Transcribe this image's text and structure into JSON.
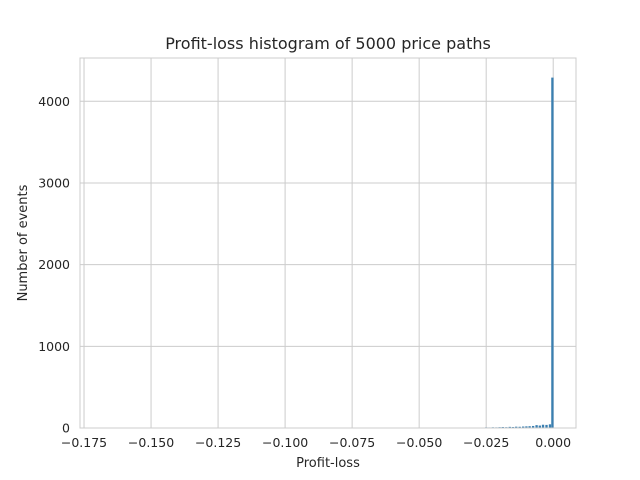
{
  "chart_data": {
    "type": "bar",
    "title": "Profit-loss histogram of 5000 price paths",
    "xlabel": "Profit-loss",
    "ylabel": "Number of events",
    "xlim": [
      -0.1765,
      0.0085
    ],
    "ylim": [
      0,
      4530
    ],
    "grid": true,
    "x_ticks": [
      -0.175,
      -0.15,
      -0.125,
      -0.1,
      -0.075,
      -0.05,
      -0.025,
      0.0
    ],
    "x_tick_labels": [
      "−0.175",
      "−0.150",
      "−0.125",
      "−0.100",
      "−0.075",
      "−0.050",
      "−0.025",
      "0.000"
    ],
    "y_ticks": [
      0,
      1000,
      2000,
      3000,
      4000
    ],
    "y_tick_labels": [
      "0",
      "1000",
      "2000",
      "3000",
      "4000"
    ],
    "bar_color": "#3a7fb0",
    "bin_width": 0.00087,
    "bins": [
      {
        "x": -0.03,
        "count": 5
      },
      {
        "x": -0.0287,
        "count": 4
      },
      {
        "x": -0.0275,
        "count": 6
      },
      {
        "x": -0.0262,
        "count": 5
      },
      {
        "x": -0.025,
        "count": 8
      },
      {
        "x": -0.0238,
        "count": 7
      },
      {
        "x": -0.0225,
        "count": 9
      },
      {
        "x": -0.0212,
        "count": 8
      },
      {
        "x": -0.02,
        "count": 10
      },
      {
        "x": -0.0188,
        "count": 12
      },
      {
        "x": -0.0175,
        "count": 10
      },
      {
        "x": -0.0162,
        "count": 14
      },
      {
        "x": -0.015,
        "count": 12
      },
      {
        "x": -0.0138,
        "count": 16
      },
      {
        "x": -0.0125,
        "count": 15
      },
      {
        "x": -0.0112,
        "count": 18
      },
      {
        "x": -0.01,
        "count": 20
      },
      {
        "x": -0.0088,
        "count": 22
      },
      {
        "x": -0.0075,
        "count": 25
      },
      {
        "x": -0.0062,
        "count": 35
      },
      {
        "x": -0.005,
        "count": 30
      },
      {
        "x": -0.0038,
        "count": 40
      },
      {
        "x": -0.0025,
        "count": 38
      },
      {
        "x": -0.0012,
        "count": 45
      },
      {
        "x": -0.0003,
        "count": 4290
      }
    ]
  }
}
